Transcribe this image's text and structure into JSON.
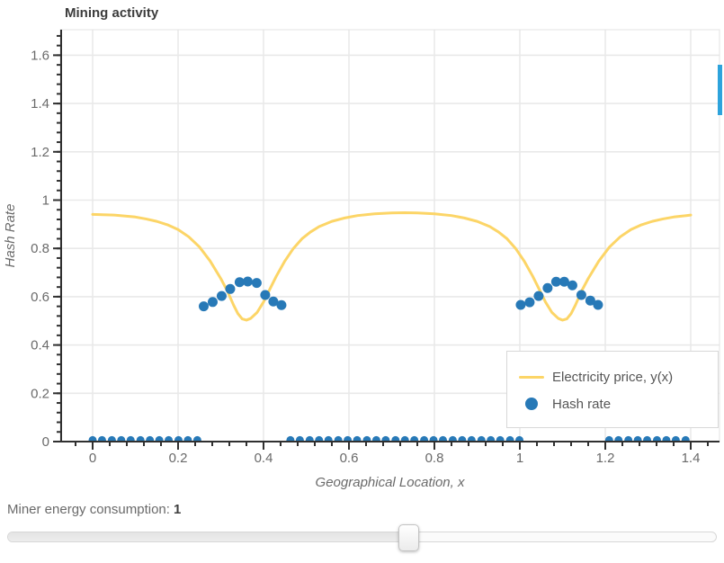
{
  "figure": {
    "title": "Mining activity"
  },
  "chart_data": {
    "type": "mixed",
    "title": "Mining activity",
    "xlabel": "Geographical Location, x",
    "ylabel": "Hash Rate",
    "xlim": [
      -0.076,
      1.467
    ],
    "ylim": [
      0,
      1.706
    ],
    "grid": "major",
    "legend_position": "bottom-right",
    "x_major_ticks": [
      0,
      0.2,
      0.4,
      0.6,
      0.8,
      1,
      1.2,
      1.4
    ],
    "x_tick_labels": [
      "0",
      "0.2",
      "0.4",
      "0.6",
      "0.8",
      "1",
      "1.2",
      "1.4"
    ],
    "y_major_ticks": [
      0,
      0.2,
      0.4,
      0.6,
      0.8,
      1,
      1.2,
      1.4,
      1.6
    ],
    "y_tick_labels": [
      "0",
      "0.2",
      "0.4",
      "0.6",
      "0.8",
      "1",
      "1.2",
      "1.4",
      "1.6"
    ],
    "minor_tick_step": 0.04,
    "series": [
      {
        "name": "Electricity price, y(x)",
        "type": "line",
        "color": "#fcd567",
        "points": [
          [
            0,
            0.941
          ],
          [
            0.05,
            0.938
          ],
          [
            0.1,
            0.93
          ],
          [
            0.125,
            0.922
          ],
          [
            0.15,
            0.912
          ],
          [
            0.175,
            0.898
          ],
          [
            0.2,
            0.878
          ],
          [
            0.225,
            0.848
          ],
          [
            0.25,
            0.806
          ],
          [
            0.275,
            0.748
          ],
          [
            0.3,
            0.675
          ],
          [
            0.315,
            0.625
          ],
          [
            0.33,
            0.565
          ],
          [
            0.34,
            0.53
          ],
          [
            0.35,
            0.508
          ],
          [
            0.36,
            0.503
          ],
          [
            0.37,
            0.51
          ],
          [
            0.385,
            0.535
          ],
          [
            0.4,
            0.578
          ],
          [
            0.415,
            0.632
          ],
          [
            0.43,
            0.685
          ],
          [
            0.45,
            0.748
          ],
          [
            0.47,
            0.8
          ],
          [
            0.49,
            0.84
          ],
          [
            0.51,
            0.868
          ],
          [
            0.53,
            0.89
          ],
          [
            0.56,
            0.912
          ],
          [
            0.59,
            0.926
          ],
          [
            0.62,
            0.936
          ],
          [
            0.66,
            0.943
          ],
          [
            0.7,
            0.947
          ],
          [
            0.73,
            0.948
          ],
          [
            0.76,
            0.947
          ],
          [
            0.8,
            0.943
          ],
          [
            0.84,
            0.936
          ],
          [
            0.87,
            0.926
          ],
          [
            0.9,
            0.912
          ],
          [
            0.93,
            0.89
          ],
          [
            0.95,
            0.868
          ],
          [
            0.97,
            0.84
          ],
          [
            0.99,
            0.8
          ],
          [
            1.01,
            0.748
          ],
          [
            1.03,
            0.685
          ],
          [
            1.045,
            0.632
          ],
          [
            1.06,
            0.578
          ],
          [
            1.075,
            0.535
          ],
          [
            1.09,
            0.51
          ],
          [
            1.1,
            0.503
          ],
          [
            1.11,
            0.508
          ],
          [
            1.12,
            0.53
          ],
          [
            1.13,
            0.565
          ],
          [
            1.145,
            0.625
          ],
          [
            1.16,
            0.675
          ],
          [
            1.185,
            0.748
          ],
          [
            1.21,
            0.806
          ],
          [
            1.235,
            0.848
          ],
          [
            1.26,
            0.878
          ],
          [
            1.285,
            0.898
          ],
          [
            1.31,
            0.912
          ],
          [
            1.335,
            0.922
          ],
          [
            1.36,
            0.93
          ],
          [
            1.4,
            0.938
          ]
        ]
      },
      {
        "name": "Hash rate",
        "type": "scatter",
        "color": "#2779b7",
        "points": [
          [
            0,
            0.006
          ],
          [
            0.022,
            0.006
          ],
          [
            0.045,
            0.006
          ],
          [
            0.067,
            0.006
          ],
          [
            0.089,
            0.006
          ],
          [
            0.112,
            0.006
          ],
          [
            0.134,
            0.006
          ],
          [
            0.156,
            0.006
          ],
          [
            0.178,
            0.006
          ],
          [
            0.201,
            0.006
          ],
          [
            0.223,
            0.006
          ],
          [
            0.245,
            0.006
          ],
          [
            0.26,
            0.56
          ],
          [
            0.281,
            0.578
          ],
          [
            0.302,
            0.603
          ],
          [
            0.322,
            0.632
          ],
          [
            0.344,
            0.66
          ],
          [
            0.363,
            0.663
          ],
          [
            0.384,
            0.657
          ],
          [
            0.404,
            0.607
          ],
          [
            0.423,
            0.58
          ],
          [
            0.442,
            0.565
          ],
          [
            0.463,
            0.006
          ],
          [
            0.485,
            0.006
          ],
          [
            0.508,
            0.006
          ],
          [
            0.53,
            0.006
          ],
          [
            0.552,
            0.006
          ],
          [
            0.575,
            0.006
          ],
          [
            0.597,
            0.006
          ],
          [
            0.619,
            0.006
          ],
          [
            0.642,
            0.006
          ],
          [
            0.664,
            0.006
          ],
          [
            0.686,
            0.006
          ],
          [
            0.709,
            0.006
          ],
          [
            0.731,
            0.006
          ],
          [
            0.753,
            0.006
          ],
          [
            0.776,
            0.006
          ],
          [
            0.798,
            0.006
          ],
          [
            0.82,
            0.006
          ],
          [
            0.843,
            0.006
          ],
          [
            0.865,
            0.006
          ],
          [
            0.887,
            0.006
          ],
          [
            0.91,
            0.006
          ],
          [
            0.932,
            0.006
          ],
          [
            0.954,
            0.006
          ],
          [
            0.977,
            0.006
          ],
          [
            0.999,
            0.006
          ],
          [
            1.002,
            0.566
          ],
          [
            1.023,
            0.577
          ],
          [
            1.044,
            0.603
          ],
          [
            1.065,
            0.636
          ],
          [
            1.085,
            0.662
          ],
          [
            1.104,
            0.662
          ],
          [
            1.123,
            0.647
          ],
          [
            1.144,
            0.607
          ],
          [
            1.165,
            0.584
          ],
          [
            1.183,
            0.566
          ],
          [
            1.209,
            0.006
          ],
          [
            1.231,
            0.006
          ],
          [
            1.254,
            0.006
          ],
          [
            1.276,
            0.006
          ],
          [
            1.298,
            0.006
          ],
          [
            1.321,
            0.006
          ],
          [
            1.343,
            0.006
          ],
          [
            1.365,
            0.006
          ],
          [
            1.388,
            0.006
          ]
        ]
      }
    ]
  },
  "legend": {
    "items": [
      {
        "label": "Electricity price, y(x)",
        "marker": "line",
        "color": "#fcd567"
      },
      {
        "label": "Hash rate",
        "marker": "dot",
        "color": "#2779b7"
      }
    ]
  },
  "controls": {
    "label": "Miner energy consumption:",
    "value": "1",
    "fraction": 0.565
  },
  "colors": {
    "grid": "#e9e9e9",
    "axis": "#303030",
    "tick_label": "#6a6a6a",
    "edge_bar": "#2da3dc"
  }
}
